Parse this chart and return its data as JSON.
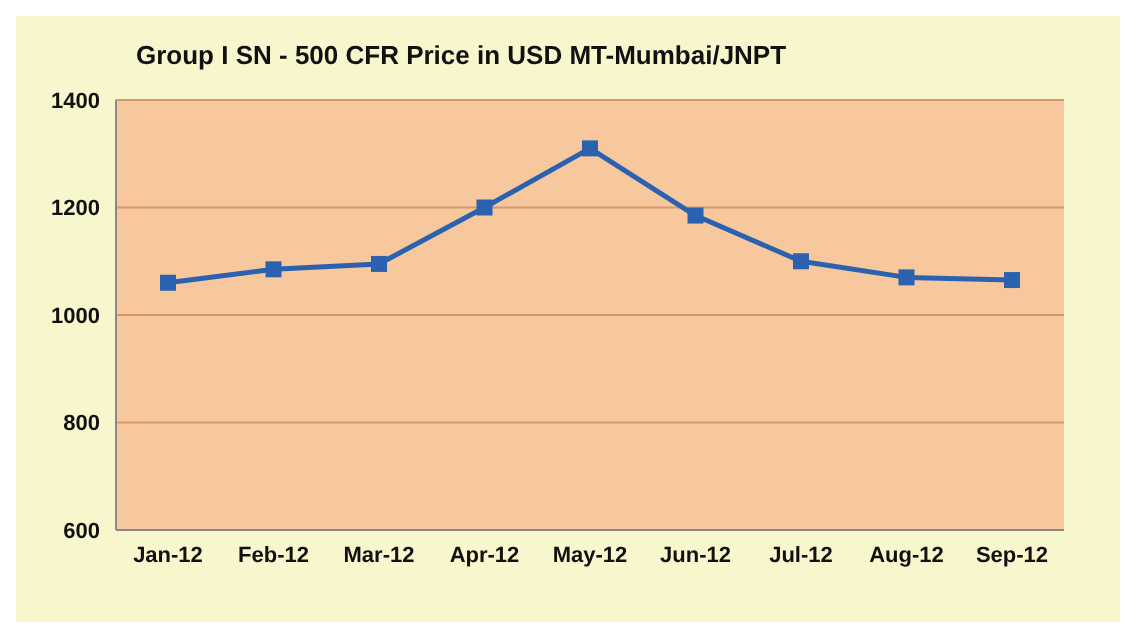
{
  "chart_data": {
    "type": "line",
    "title": "Group I SN - 500 CFR Price in USD MT-Mumbai/JNPT",
    "categories": [
      "Jan-12",
      "Feb-12",
      "Mar-12",
      "Apr-12",
      "May-12",
      "Jun-12",
      "Jul-12",
      "Aug-12",
      "Sep-12"
    ],
    "series": [
      {
        "color": "#2a62b0",
        "values": [
          1060,
          1085,
          1095,
          1200,
          1310,
          1185,
          1100,
          1070,
          1065
        ]
      }
    ],
    "ylim": [
      600,
      1400
    ],
    "yticks": [
      600,
      800,
      1000,
      1200,
      1400
    ],
    "grid": "y",
    "marker": "square",
    "line_style": "solid",
    "legend": false
  }
}
